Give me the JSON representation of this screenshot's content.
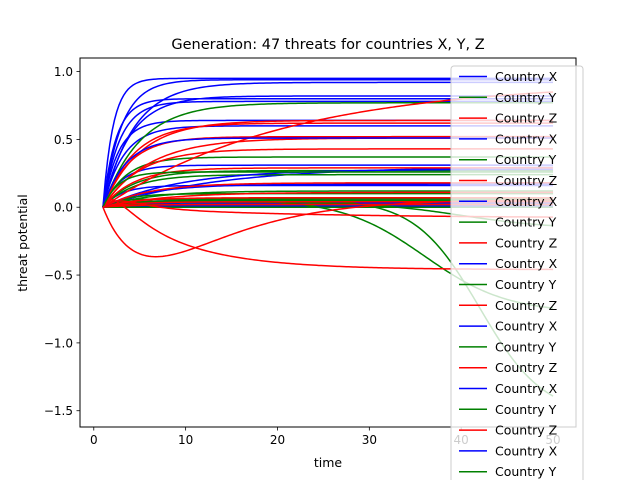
{
  "chart_data": {
    "type": "line",
    "title": "Generation: 47 threats for countries X, Y, Z",
    "xlabel": "time",
    "ylabel": "threat potential",
    "xlim": [
      -1.5,
      52.5
    ],
    "ylim": [
      -1.62,
      1.1
    ],
    "xticks": [
      0,
      10,
      20,
      30,
      40,
      50
    ],
    "yticks": [
      1.0,
      0.5,
      0.0,
      -0.5,
      -1.0,
      -1.5
    ],
    "xtick_labels": [
      "0",
      "10",
      "20",
      "30",
      "40",
      "50"
    ],
    "ytick_labels": [
      "1.0",
      "0.5",
      "0.0",
      "−0.5",
      "−1.0",
      "−1.5"
    ],
    "grid": false,
    "legend": {
      "placement": "right",
      "entries": [
        {
          "label": "Country X",
          "color": "#0000ff"
        },
        {
          "label": "Country Y",
          "color": "#008000"
        },
        {
          "label": "Country Z",
          "color": "#ff0000"
        },
        {
          "label": "Country X",
          "color": "#0000ff"
        },
        {
          "label": "Country Y",
          "color": "#008000"
        },
        {
          "label": "Country Z",
          "color": "#ff0000"
        },
        {
          "label": "Country X",
          "color": "#0000ff"
        },
        {
          "label": "Country Y",
          "color": "#008000"
        },
        {
          "label": "Country Z",
          "color": "#ff0000"
        },
        {
          "label": "Country X",
          "color": "#0000ff"
        },
        {
          "label": "Country Y",
          "color": "#008000"
        },
        {
          "label": "Country Z",
          "color": "#ff0000"
        },
        {
          "label": "Country X",
          "color": "#0000ff"
        },
        {
          "label": "Country Y",
          "color": "#008000"
        },
        {
          "label": "Country Z",
          "color": "#ff0000"
        },
        {
          "label": "Country X",
          "color": "#0000ff"
        },
        {
          "label": "Country Y",
          "color": "#008000"
        },
        {
          "label": "Country Z",
          "color": "#ff0000"
        },
        {
          "label": "Country X",
          "color": "#0000ff"
        },
        {
          "label": "Country Y",
          "color": "#008000"
        }
      ]
    },
    "x_start": 1,
    "x_end": 50,
    "series": [
      {
        "color": "#0000ff",
        "kind": "sat",
        "final": 0.95,
        "rate": 0.9
      },
      {
        "color": "#0000ff",
        "kind": "sat",
        "final": 0.94,
        "rate": 0.5
      },
      {
        "color": "#0000ff",
        "kind": "sat",
        "final": 0.82,
        "rate": 0.35
      },
      {
        "color": "#0000ff",
        "kind": "sat",
        "final": 0.8,
        "rate": 0.7
      },
      {
        "color": "#0000ff",
        "kind": "sat",
        "final": 0.64,
        "rate": 0.6
      },
      {
        "color": "#0000ff",
        "kind": "sat",
        "final": 0.6,
        "rate": 0.45
      },
      {
        "color": "#0000ff",
        "kind": "sat",
        "final": 0.31,
        "rate": 0.5
      },
      {
        "color": "#0000ff",
        "kind": "sat",
        "final": 0.3,
        "rate": 0.08
      },
      {
        "color": "#0000ff",
        "kind": "sat",
        "final": 0.17,
        "rate": 0.2
      },
      {
        "color": "#0000ff",
        "kind": "sat",
        "final": 0.16,
        "rate": 0.5
      },
      {
        "color": "#0000ff",
        "kind": "sat",
        "final": 0.05,
        "rate": 0.4
      },
      {
        "color": "#0000ff",
        "kind": "sat",
        "final": 0.03,
        "rate": 0.6
      },
      {
        "color": "#0000ff",
        "kind": "sat",
        "final": 0.01,
        "rate": 0.6
      },
      {
        "color": "#0000ff",
        "kind": "sat",
        "final": 0.0,
        "rate": 0.6
      },
      {
        "color": "#0000ff",
        "kind": "sat",
        "final": 0.92,
        "rate": 0.3
      },
      {
        "color": "#0000ff",
        "kind": "sat",
        "final": 0.78,
        "rate": 0.55
      },
      {
        "color": "#008000",
        "kind": "sat",
        "final": 0.77,
        "rate": 0.25
      },
      {
        "color": "#008000",
        "kind": "sat",
        "final": 0.37,
        "rate": 0.4
      },
      {
        "color": "#008000",
        "kind": "sat",
        "final": 0.27,
        "rate": 0.3
      },
      {
        "color": "#008000",
        "kind": "sat",
        "final": 0.24,
        "rate": 0.3
      },
      {
        "color": "#008000",
        "kind": "sat",
        "final": 0.12,
        "rate": 0.2
      },
      {
        "color": "#008000",
        "kind": "sat",
        "final": 0.1,
        "rate": 0.4
      },
      {
        "color": "#008000",
        "kind": "sat",
        "final": 0.06,
        "rate": 0.2
      },
      {
        "color": "#008000",
        "kind": "sat",
        "final": 0.05,
        "rate": 0.4
      },
      {
        "color": "#008000",
        "kind": "sat",
        "final": 0.02,
        "rate": 0.5
      },
      {
        "color": "#008000",
        "kind": "sat",
        "final": 0.0,
        "rate": 0.5
      },
      {
        "color": "#008000",
        "kind": "sigmoid",
        "bump": 0.06,
        "final": -0.84,
        "mid": 36,
        "width": 4.5
      },
      {
        "color": "#008000",
        "kind": "sigmoid",
        "bump": 0.06,
        "final": -1.6,
        "mid": 42,
        "width": 3.5
      },
      {
        "color": "#008000",
        "kind": "sigmoid",
        "bump": 0.04,
        "final": -0.2,
        "mid": 40,
        "width": 5
      },
      {
        "color": "#ff0000",
        "kind": "sat",
        "final": 0.93,
        "rate": 0.05
      },
      {
        "color": "#ff0000",
        "kind": "sat",
        "final": 0.64,
        "rate": 0.25
      },
      {
        "color": "#ff0000",
        "kind": "sat",
        "final": 0.62,
        "rate": 0.3
      },
      {
        "color": "#ff0000",
        "kind": "sat",
        "final": 0.52,
        "rate": 0.35
      },
      {
        "color": "#ff0000",
        "kind": "sat",
        "final": 0.51,
        "rate": 0.2
      },
      {
        "color": "#ff0000",
        "kind": "sat",
        "final": 0.43,
        "rate": 0.25
      },
      {
        "color": "#ff0000",
        "kind": "sat",
        "final": 0.29,
        "rate": 0.3
      },
      {
        "color": "#ff0000",
        "kind": "sat",
        "final": 0.07,
        "rate": 0.3
      },
      {
        "color": "#ff0000",
        "kind": "sat",
        "final": 0.04,
        "rate": 0.3
      },
      {
        "color": "#ff0000",
        "kind": "sat",
        "final": 0.02,
        "rate": 0.3
      },
      {
        "color": "#ff0000",
        "kind": "dip",
        "dip": -0.38,
        "dip_at": 7,
        "final": 0.06,
        "rate": 0.06
      },
      {
        "color": "#ff0000",
        "kind": "dip",
        "dip": 0.07,
        "dip_at": 3,
        "final": -0.46,
        "rate": 0.12
      },
      {
        "color": "#ff0000",
        "kind": "dip",
        "dip": 0.05,
        "dip_at": 3,
        "final": -0.08,
        "rate": 0.05
      },
      {
        "color": "#ff0000",
        "kind": "sat",
        "final": 0.11,
        "rate": 0.15
      },
      {
        "color": "#0000ff",
        "kind": "sat",
        "final": 0.28,
        "rate": 0.12
      },
      {
        "color": "#0000ff",
        "kind": "sat",
        "final": 0.51,
        "rate": 0.4
      },
      {
        "color": "#008000",
        "kind": "sat",
        "final": 0.26,
        "rate": 0.6
      },
      {
        "color": "#ff0000",
        "kind": "sat",
        "final": 0.18,
        "rate": 0.2
      }
    ]
  }
}
